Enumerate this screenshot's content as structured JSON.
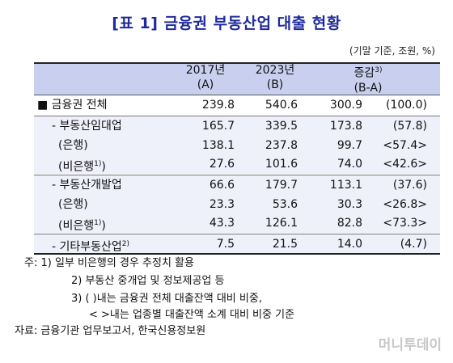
{
  "title": "[표 1] 금융권 부동산업 대출 현황",
  "unit": "(기말 기준, 조원, %)",
  "headers": {
    "col1_year": "2017년",
    "col1_tag": "(A)",
    "col2_year": "2023년",
    "col2_tag": "(B)",
    "col3_label": "증감",
    "col3_sup": "3)",
    "col3_tag": "(B-A)"
  },
  "rows": [
    {
      "label": "■ 금융권 전체",
      "sup": "",
      "a": "239.8",
      "b": "540.6",
      "diff": "300.9",
      "ratio": "(100.0)"
    },
    {
      "label": "- 부동산임대업",
      "sup": "",
      "a": "165.7",
      "b": "339.5",
      "diff": "173.8",
      "ratio": "(57.8)"
    },
    {
      "label": "(은행)",
      "sup": "",
      "a": "138.1",
      "b": "237.8",
      "diff": "99.7",
      "ratio": "<57.4>"
    },
    {
      "label": "(비은행",
      "sup": "1)",
      "a": "27.6",
      "b": "101.6",
      "diff": "74.0",
      "ratio": "<42.6>"
    },
    {
      "label": "- 부동산개발업",
      "sup": "",
      "a": "66.6",
      "b": "179.7",
      "diff": "113.1",
      "ratio": "(37.6)"
    },
    {
      "label": "(은행)",
      "sup": "",
      "a": "23.3",
      "b": "53.6",
      "diff": "30.3",
      "ratio": "<26.8>"
    },
    {
      "label": "(비은행",
      "sup": "1)",
      "a": "43.3",
      "b": "126.1",
      "diff": "82.8",
      "ratio": "<73.3>"
    },
    {
      "label": "- 기타부동산업",
      "sup": "2)",
      "a": "7.5",
      "b": "21.5",
      "diff": "14.0",
      "ratio": "(4.7)"
    }
  ],
  "notes": [
    "주: 1) 일부 비은행의 경우 추정치 활용",
    "2) 부동산 중개업 및 정보제공업 등",
    "3) (   )내는 금융권 전체 대출잔액 대비 비중,",
    "< >내는 업종별 대출잔액 소계 대비 비중 기준",
    "자료: 금융기관 업무보고서, 한국신용정보원"
  ],
  "watermark": "머니투데이",
  "colors": {
    "title": "#1e2a9a",
    "header_bg": "#c9d0ef",
    "group_bg": "#eef0fa"
  }
}
